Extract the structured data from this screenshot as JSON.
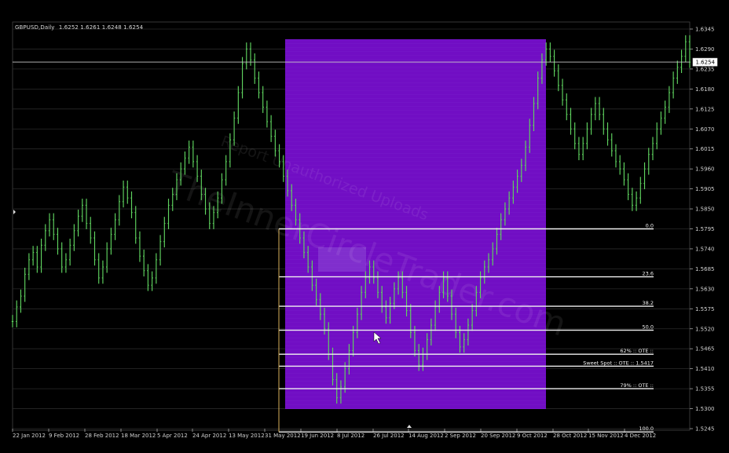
{
  "header": {
    "symbol_timeframe": "GBPUSD,Daily",
    "ohlc": "1.6252 1.6261 1.6248 1.6254"
  },
  "watermark": {
    "line1": "TheInnerCircleTrader.com",
    "line2": "Report Unauthorized Uploads"
  },
  "chart_data": {
    "type": "line",
    "title": "",
    "xlabel": "",
    "ylabel": "",
    "x_ticks": [
      "22 Jan 2012",
      "9 Feb 2012",
      "28 Feb 2012",
      "18 Mar 2012",
      "5 Apr 2012",
      "24 Apr 2012",
      "13 May 2012",
      "31 May 2012",
      "19 Jun 2012",
      "8 Jul 2012",
      "26 Jul 2012",
      "14 Aug 2012",
      "2 Sep 2012",
      "20 Sep 2012",
      "9 Oct 2012",
      "28 Oct 2012",
      "15 Nov 2012",
      "4 Dec 2012"
    ],
    "y_ticks": [
      "1.6345",
      "1.6290",
      "1.6235",
      "1.6180",
      "1.6125",
      "1.6070",
      "1.6015",
      "1.5960",
      "1.5905",
      "1.5850",
      "1.5795",
      "1.5740",
      "1.5685",
      "1.5630",
      "1.5575",
      "1.5520",
      "1.5465",
      "1.5410",
      "1.5355",
      "1.5300",
      "1.5245"
    ],
    "ylim": [
      1.5245,
      1.6345
    ],
    "current_price": "1.6254",
    "grid": true,
    "series": [
      {
        "values": [
          1.554,
          1.558,
          1.561,
          1.567,
          1.571,
          1.573,
          1.569,
          1.575,
          1.579,
          1.582,
          1.578,
          1.574,
          1.569,
          1.571,
          1.575,
          1.579,
          1.583,
          1.586,
          1.581,
          1.577,
          1.571,
          1.566,
          1.569,
          1.574,
          1.578,
          1.582,
          1.587,
          1.591,
          1.588,
          1.584,
          1.577,
          1.572,
          1.568,
          1.564,
          1.566,
          1.571,
          1.576,
          1.581,
          1.586,
          1.589,
          1.593,
          1.596,
          1.599,
          1.602,
          1.598,
          1.594,
          1.589,
          1.585,
          1.581,
          1.584,
          1.588,
          1.593,
          1.598,
          1.604,
          1.61,
          1.617,
          1.625,
          1.629,
          1.626,
          1.621,
          1.617,
          1.613,
          1.609,
          1.605,
          1.601,
          1.598,
          1.594,
          1.59,
          1.586,
          1.582,
          1.577,
          1.573,
          1.569,
          1.564,
          1.56,
          1.556,
          1.552,
          1.545,
          1.538,
          1.533,
          1.536,
          1.541,
          1.546,
          1.551,
          1.556,
          1.562,
          1.566,
          1.569,
          1.566,
          1.562,
          1.558,
          1.555,
          1.559,
          1.563,
          1.566,
          1.562,
          1.557,
          1.551,
          1.546,
          1.542,
          1.545,
          1.549,
          1.553,
          1.558,
          1.562,
          1.566,
          1.561,
          1.556,
          1.551,
          1.547,
          1.549,
          1.553,
          1.557,
          1.562,
          1.566,
          1.569,
          1.571,
          1.574,
          1.578,
          1.582,
          1.585,
          1.588,
          1.591,
          1.594,
          1.597,
          1.602,
          1.608,
          1.614,
          1.621,
          1.626,
          1.629,
          1.627,
          1.623,
          1.619,
          1.615,
          1.611,
          1.607,
          1.603,
          1.6,
          1.603,
          1.607,
          1.611,
          1.614,
          1.611,
          1.607,
          1.604,
          1.601,
          1.598,
          1.596,
          1.593,
          1.589,
          1.586,
          1.588,
          1.592,
          1.596,
          1.6,
          1.603,
          1.607,
          1.61,
          1.613,
          1.617,
          1.621,
          1.624,
          1.627,
          1.631,
          1.6254
        ]
      }
    ],
    "fibonacci_levels": [
      {
        "label": "0.0",
        "price": 1.5795
      },
      {
        "label": "23.6",
        "price": 1.5663
      },
      {
        "label": "38.2",
        "price": 1.5582
      },
      {
        "label": "50.0",
        "price": 1.5516
      },
      {
        "label": "62% :: OTE ::",
        "price": 1.545
      },
      {
        "label": "Sweet Spot :: OTE :: 1.5417",
        "price": 1.5417
      },
      {
        "label": "79% :: OTE ::",
        "price": 1.5355
      },
      {
        "label": "100.0",
        "price": 1.5236
      }
    ],
    "highlight_region": {
      "color": "#7a0fd3",
      "x_from_tick": "31 May 2012",
      "x_to_tick": "9 Oct 2012"
    },
    "colors": {
      "background": "#000000",
      "series": "#5fd35f",
      "grid": "#555555",
      "fib": "#f0f0f0",
      "highlight": "#7a0fd3"
    }
  }
}
